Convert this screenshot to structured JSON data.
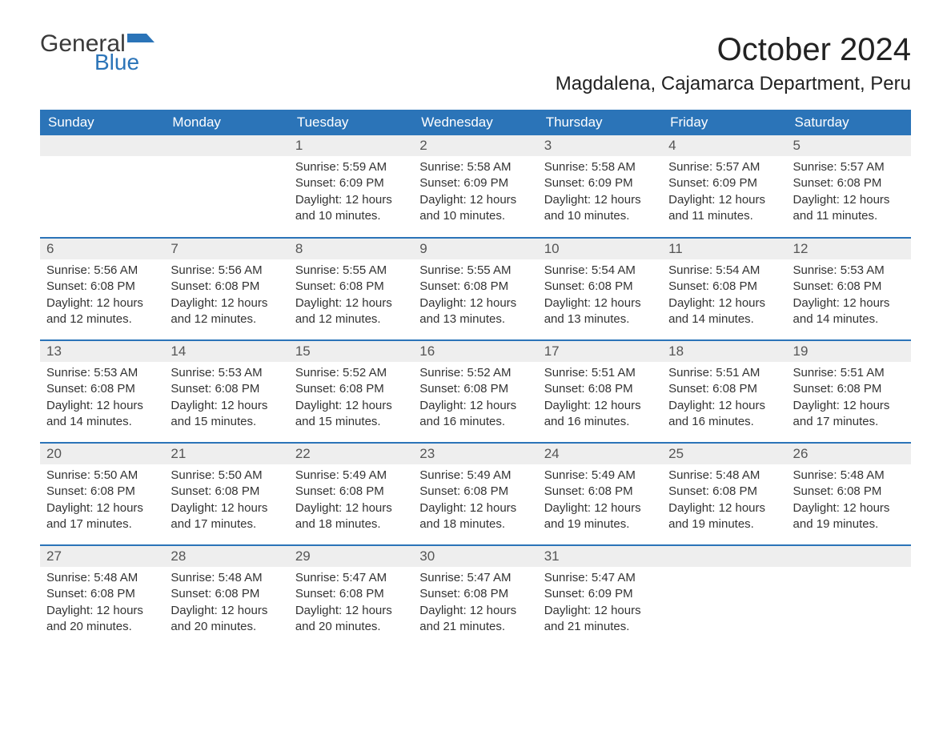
{
  "logo": {
    "text1": "General",
    "text2": "Blue",
    "color_general": "#3a3a3a",
    "color_blue": "#2b74b8"
  },
  "title": "October 2024",
  "location": "Magdalena, Cajamarca Department, Peru",
  "colors": {
    "header_bg": "#2b74b8",
    "header_fg": "#ffffff",
    "daynum_bg": "#eeeeee",
    "row_divider": "#2b74b8",
    "text": "#333333",
    "background": "#ffffff"
  },
  "dayHeaders": [
    "Sunday",
    "Monday",
    "Tuesday",
    "Wednesday",
    "Thursday",
    "Friday",
    "Saturday"
  ],
  "weeks": [
    [
      null,
      null,
      {
        "n": "1",
        "sunrise": "5:59 AM",
        "sunset": "6:09 PM",
        "daylight": "12 hours and 10 minutes."
      },
      {
        "n": "2",
        "sunrise": "5:58 AM",
        "sunset": "6:09 PM",
        "daylight": "12 hours and 10 minutes."
      },
      {
        "n": "3",
        "sunrise": "5:58 AM",
        "sunset": "6:09 PM",
        "daylight": "12 hours and 10 minutes."
      },
      {
        "n": "4",
        "sunrise": "5:57 AM",
        "sunset": "6:09 PM",
        "daylight": "12 hours and 11 minutes."
      },
      {
        "n": "5",
        "sunrise": "5:57 AM",
        "sunset": "6:08 PM",
        "daylight": "12 hours and 11 minutes."
      }
    ],
    [
      {
        "n": "6",
        "sunrise": "5:56 AM",
        "sunset": "6:08 PM",
        "daylight": "12 hours and 12 minutes."
      },
      {
        "n": "7",
        "sunrise": "5:56 AM",
        "sunset": "6:08 PM",
        "daylight": "12 hours and 12 minutes."
      },
      {
        "n": "8",
        "sunrise": "5:55 AM",
        "sunset": "6:08 PM",
        "daylight": "12 hours and 12 minutes."
      },
      {
        "n": "9",
        "sunrise": "5:55 AM",
        "sunset": "6:08 PM",
        "daylight": "12 hours and 13 minutes."
      },
      {
        "n": "10",
        "sunrise": "5:54 AM",
        "sunset": "6:08 PM",
        "daylight": "12 hours and 13 minutes."
      },
      {
        "n": "11",
        "sunrise": "5:54 AM",
        "sunset": "6:08 PM",
        "daylight": "12 hours and 14 minutes."
      },
      {
        "n": "12",
        "sunrise": "5:53 AM",
        "sunset": "6:08 PM",
        "daylight": "12 hours and 14 minutes."
      }
    ],
    [
      {
        "n": "13",
        "sunrise": "5:53 AM",
        "sunset": "6:08 PM",
        "daylight": "12 hours and 14 minutes."
      },
      {
        "n": "14",
        "sunrise": "5:53 AM",
        "sunset": "6:08 PM",
        "daylight": "12 hours and 15 minutes."
      },
      {
        "n": "15",
        "sunrise": "5:52 AM",
        "sunset": "6:08 PM",
        "daylight": "12 hours and 15 minutes."
      },
      {
        "n": "16",
        "sunrise": "5:52 AM",
        "sunset": "6:08 PM",
        "daylight": "12 hours and 16 minutes."
      },
      {
        "n": "17",
        "sunrise": "5:51 AM",
        "sunset": "6:08 PM",
        "daylight": "12 hours and 16 minutes."
      },
      {
        "n": "18",
        "sunrise": "5:51 AM",
        "sunset": "6:08 PM",
        "daylight": "12 hours and 16 minutes."
      },
      {
        "n": "19",
        "sunrise": "5:51 AM",
        "sunset": "6:08 PM",
        "daylight": "12 hours and 17 minutes."
      }
    ],
    [
      {
        "n": "20",
        "sunrise": "5:50 AM",
        "sunset": "6:08 PM",
        "daylight": "12 hours and 17 minutes."
      },
      {
        "n": "21",
        "sunrise": "5:50 AM",
        "sunset": "6:08 PM",
        "daylight": "12 hours and 17 minutes."
      },
      {
        "n": "22",
        "sunrise": "5:49 AM",
        "sunset": "6:08 PM",
        "daylight": "12 hours and 18 minutes."
      },
      {
        "n": "23",
        "sunrise": "5:49 AM",
        "sunset": "6:08 PM",
        "daylight": "12 hours and 18 minutes."
      },
      {
        "n": "24",
        "sunrise": "5:49 AM",
        "sunset": "6:08 PM",
        "daylight": "12 hours and 19 minutes."
      },
      {
        "n": "25",
        "sunrise": "5:48 AM",
        "sunset": "6:08 PM",
        "daylight": "12 hours and 19 minutes."
      },
      {
        "n": "26",
        "sunrise": "5:48 AM",
        "sunset": "6:08 PM",
        "daylight": "12 hours and 19 minutes."
      }
    ],
    [
      {
        "n": "27",
        "sunrise": "5:48 AM",
        "sunset": "6:08 PM",
        "daylight": "12 hours and 20 minutes."
      },
      {
        "n": "28",
        "sunrise": "5:48 AM",
        "sunset": "6:08 PM",
        "daylight": "12 hours and 20 minutes."
      },
      {
        "n": "29",
        "sunrise": "5:47 AM",
        "sunset": "6:08 PM",
        "daylight": "12 hours and 20 minutes."
      },
      {
        "n": "30",
        "sunrise": "5:47 AM",
        "sunset": "6:08 PM",
        "daylight": "12 hours and 21 minutes."
      },
      {
        "n": "31",
        "sunrise": "5:47 AM",
        "sunset": "6:09 PM",
        "daylight": "12 hours and 21 minutes."
      },
      null,
      null
    ]
  ],
  "labels": {
    "sunrise": "Sunrise: ",
    "sunset": "Sunset: ",
    "daylight": "Daylight: "
  }
}
